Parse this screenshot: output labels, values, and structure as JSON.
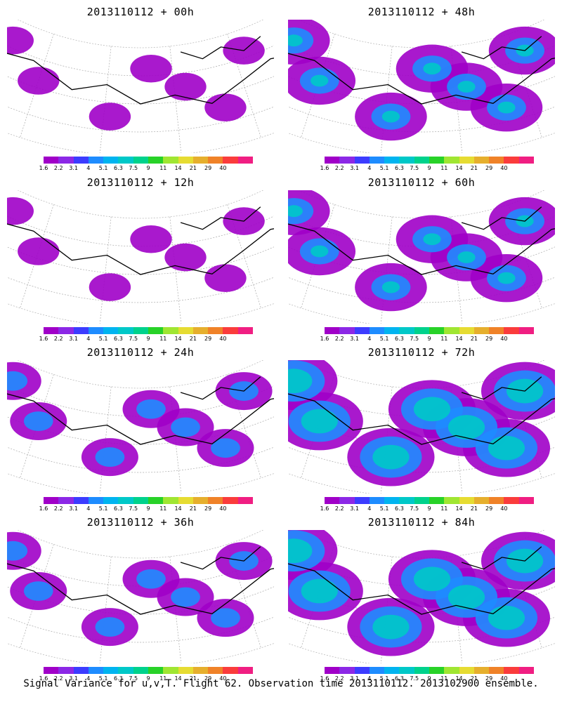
{
  "panels": [
    {
      "title": "2013110112 + 00h",
      "coverage": "low"
    },
    {
      "title": "2013110112 + 48h",
      "coverage": "medium"
    },
    {
      "title": "2013110112 + 12h",
      "coverage": "low"
    },
    {
      "title": "2013110112 + 60h",
      "coverage": "medium"
    },
    {
      "title": "2013110112 + 24h",
      "coverage": "low-medium"
    },
    {
      "title": "2013110112 + 72h",
      "coverage": "high"
    },
    {
      "title": "2013110112 + 36h",
      "coverage": "low-medium"
    },
    {
      "title": "2013110112 + 84h",
      "coverage": "high"
    }
  ],
  "colorbar": {
    "labels": [
      "1.6",
      "2.2",
      "3.1",
      "4",
      "5.1",
      "6.3",
      "7.5",
      "9",
      "11",
      "14",
      "21",
      "29",
      "40"
    ],
    "colors": [
      "#a000c8",
      "#8c28e6",
      "#3c3cff",
      "#1e8cff",
      "#00b4f0",
      "#00c8c8",
      "#00d28c",
      "#28d228",
      "#a0e632",
      "#e6dc32",
      "#e6af2d",
      "#f08228",
      "#fa3c3c",
      "#f01e82"
    ]
  },
  "footer": "Signal Variance for u,v,T. Flight 62. Observation time 2013110112. 2013102900 ensemble."
}
